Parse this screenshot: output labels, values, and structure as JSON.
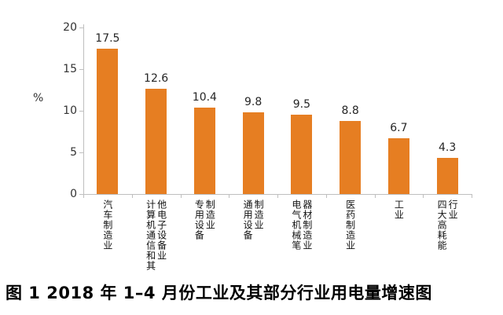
{
  "chart_data": {
    "type": "bar",
    "caption": "图 1  2018 年 1–4 月份工业及其部分行业用电量增速图",
    "ylabel": "%",
    "ylim": [
      0,
      20
    ],
    "yticks": [
      0,
      5,
      10,
      15,
      20
    ],
    "categories": [
      "汽车制造业",
      "计算机通信和其他电子设备业",
      "专用设备制造业",
      "通用设备制造业",
      "电气机械笔器材制造业",
      "医药制造业",
      "工业",
      "四大高耗能行业"
    ],
    "category_display_columns": [
      [
        "汽车制造业"
      ],
      [
        "计算机通信和其",
        "他电子设备业"
      ],
      [
        "专用设备",
        "制造业"
      ],
      [
        "通用设备",
        "制造业"
      ],
      [
        "电气机械笔",
        "器材制造业"
      ],
      [
        "医药制造业"
      ],
      [
        "工业"
      ],
      [
        "四大高耗能",
        "行业"
      ]
    ],
    "values": [
      17.5,
      12.6,
      10.4,
      9.8,
      9.5,
      8.8,
      6.7,
      4.3
    ],
    "value_labels": [
      "17.5",
      "12.6",
      "10.4",
      "9.8",
      "9.5",
      "8.8",
      "6.7",
      "4.3"
    ],
    "bar_color": "#E67E22",
    "axis_color": "#BFBFBF",
    "text_color": "#262626",
    "grid": "off",
    "legend": "none"
  }
}
